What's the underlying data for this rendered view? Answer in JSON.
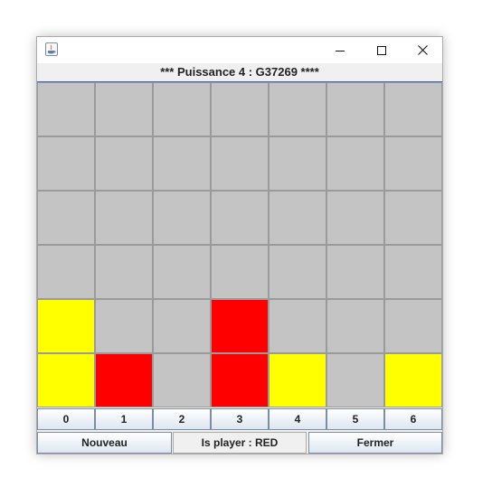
{
  "window": {
    "icon": "java-icon",
    "controls": {
      "minimize": "minimize-icon",
      "maximize": "maximize-icon",
      "close": "close-icon"
    }
  },
  "heading": "*** Puissance 4 : G37269 ****",
  "board": {
    "rows": 6,
    "columns": 7,
    "colors": {
      "empty": "#c4c4c4",
      "red": "#ff0000",
      "yellow": "#ffff00",
      "border": "#4a5bc8"
    },
    "cells": [
      [
        "empty",
        "empty",
        "empty",
        "empty",
        "empty",
        "empty",
        "empty"
      ],
      [
        "empty",
        "empty",
        "empty",
        "empty",
        "empty",
        "empty",
        "empty"
      ],
      [
        "empty",
        "empty",
        "empty",
        "empty",
        "empty",
        "empty",
        "empty"
      ],
      [
        "empty",
        "empty",
        "empty",
        "empty",
        "empty",
        "empty",
        "empty"
      ],
      [
        "yellow",
        "empty",
        "empty",
        "red",
        "empty",
        "empty",
        "empty"
      ],
      [
        "yellow",
        "red",
        "empty",
        "red",
        "yellow",
        "empty",
        "yellow"
      ]
    ]
  },
  "columns": [
    "0",
    "1",
    "2",
    "3",
    "4",
    "5",
    "6"
  ],
  "buttons": {
    "new_game": "Nouveau",
    "close": "Fermer"
  },
  "status": "Is player : RED"
}
